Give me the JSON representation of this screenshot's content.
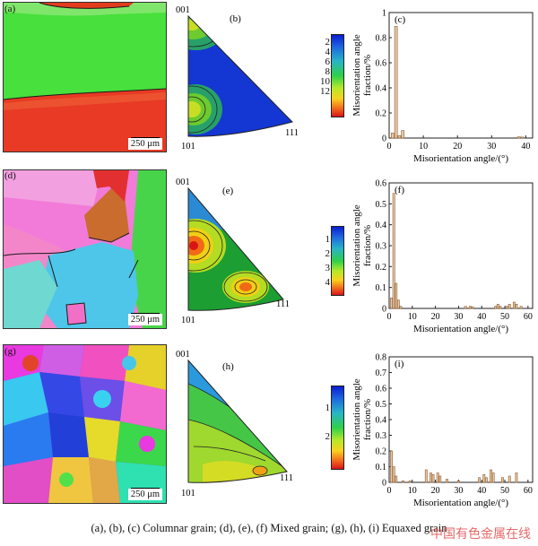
{
  "caption": "(a), (b), (c) Columnar grain; (d), (e), (f) Mixed grain; (g), (h), (i) Equaxed grain",
  "watermark": "中国有色金属在线",
  "ylabel": [
    "Misorientation angle",
    "fraction/%"
  ],
  "rows": [
    {
      "map_label": "(a)",
      "scale_label": "250 μm",
      "pf_label": "(b)",
      "pf_corners": {
        "top": "001",
        "left": "101",
        "right": "111"
      },
      "legend_ticks": [
        "2",
        "4",
        "6",
        "8",
        "10",
        "12"
      ],
      "hist_label": "(c)"
    },
    {
      "map_label": "(d)",
      "scale_label": "250 μm",
      "pf_label": "(e)",
      "pf_corners": {
        "top": "001",
        "left": "101",
        "right": "111"
      },
      "legend_ticks": [
        "1",
        "2",
        "3",
        "4"
      ],
      "hist_label": "(f)"
    },
    {
      "map_label": "(g)",
      "scale_label": "250 μm",
      "pf_label": "(h)",
      "pf_corners": {
        "top": "001",
        "left": "101",
        "right": "111"
      },
      "legend_ticks": [
        "1",
        "2"
      ],
      "hist_label": "(i)"
    }
  ],
  "chart_data": [
    {
      "type": "bar",
      "xlabel": "Misorientation angle/(°)",
      "ylabel": "Misorientation angle fraction/%",
      "xlim": [
        0,
        42
      ],
      "ylim": [
        0,
        1.0
      ],
      "xticks": [
        0,
        10,
        20,
        30,
        40
      ],
      "yticks": [
        0,
        0.2,
        0.4,
        0.6,
        0.8,
        1.0
      ],
      "bars": [
        [
          1,
          0.04
        ],
        [
          2,
          0.89
        ],
        [
          3,
          0.02
        ],
        [
          4,
          0.06
        ],
        [
          38,
          0.01
        ],
        [
          39,
          0.008
        ]
      ]
    },
    {
      "type": "bar",
      "xlabel": "Misorientation angle/(°)",
      "ylabel": "Misorientation angle fraction/%",
      "xlim": [
        0,
        62
      ],
      "ylim": [
        0,
        0.6
      ],
      "xticks": [
        0,
        10,
        20,
        30,
        40,
        50,
        60
      ],
      "yticks": [
        0,
        0.1,
        0.2,
        0.3,
        0.4,
        0.5,
        0.6
      ],
      "bars": [
        [
          1,
          0.05
        ],
        [
          2,
          0.55
        ],
        [
          3,
          0.12
        ],
        [
          4,
          0.04
        ],
        [
          5,
          0.01
        ],
        [
          33,
          0.01
        ],
        [
          35,
          0.01
        ],
        [
          36,
          0.008
        ],
        [
          46,
          0.01
        ],
        [
          47,
          0.02
        ],
        [
          48,
          0.01
        ],
        [
          51,
          0.01
        ],
        [
          52,
          0.02
        ],
        [
          54,
          0.03
        ],
        [
          55,
          0.02
        ],
        [
          57,
          0.01
        ]
      ]
    },
    {
      "type": "bar",
      "xlabel": "Misorientation angle/(°)",
      "ylabel": "Misorientation angle fraction/%",
      "xlim": [
        0,
        62
      ],
      "ylim": [
        0,
        0.8
      ],
      "xticks": [
        0,
        10,
        20,
        30,
        40,
        50,
        60
      ],
      "yticks": [
        0,
        0.1,
        0.2,
        0.3,
        0.4,
        0.5,
        0.6,
        0.7,
        0.8
      ],
      "bars": [
        [
          1,
          0.2
        ],
        [
          2,
          0.1
        ],
        [
          3,
          0.04
        ],
        [
          6,
          0.01
        ],
        [
          9,
          0.01
        ],
        [
          16,
          0.08
        ],
        [
          18,
          0.06
        ],
        [
          19,
          0.05
        ],
        [
          21,
          0.06
        ],
        [
          22,
          0.04
        ],
        [
          25,
          0.02
        ],
        [
          30,
          0.01
        ],
        [
          39,
          0.03
        ],
        [
          41,
          0.05
        ],
        [
          42,
          0.03
        ],
        [
          44,
          0.08
        ],
        [
          45,
          0.06
        ],
        [
          49,
          0.03
        ],
        [
          52,
          0.04
        ],
        [
          55,
          0.06
        ]
      ]
    }
  ]
}
